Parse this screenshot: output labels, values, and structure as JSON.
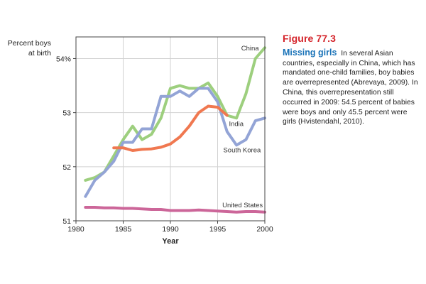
{
  "figure": {
    "number_label": "Figure 77.3",
    "title": "Missing girls",
    "text": "In several Asian countries, especially in China, which has mandated one-child families, boy babies are overrepresented (Abrevaya, 2009). In China, this overrepresentation still occurred in 2009: 54.5 percent of babies were boys and only 45.5 percent were girls (Hvistendahl, 2010)."
  },
  "chart_data": {
    "type": "line",
    "ylabel": "Percent boys at birth",
    "xlabel": "Year",
    "xlim": [
      1980,
      2000
    ],
    "ylim": [
      51,
      54.4
    ],
    "xticks": [
      {
        "value": 1980,
        "label": "1980"
      },
      {
        "value": 1985,
        "label": "1985"
      },
      {
        "value": 1990,
        "label": "1990"
      },
      {
        "value": 1995,
        "label": "1995"
      },
      {
        "value": 2000,
        "label": "2000"
      }
    ],
    "yticks": [
      {
        "value": 51,
        "label": "51"
      },
      {
        "value": 52,
        "label": "52"
      },
      {
        "value": 53,
        "label": "53"
      },
      {
        "value": 54,
        "label": "54%"
      }
    ],
    "grid": true,
    "series": [
      {
        "name": "China",
        "color": "#9dcf7e",
        "label_at": [
          1997.5,
          54.15
        ],
        "x": [
          1981,
          1982,
          1983,
          1984,
          1985,
          1986,
          1987,
          1988,
          1989,
          1990,
          1991,
          1992,
          1993,
          1994,
          1995,
          1996,
          1997,
          1998,
          1999,
          2000
        ],
        "y": [
          51.75,
          51.8,
          51.9,
          52.2,
          52.5,
          52.75,
          52.5,
          52.6,
          52.9,
          53.45,
          53.5,
          53.45,
          53.45,
          53.55,
          53.3,
          52.95,
          52.9,
          53.35,
          54.0,
          54.2
        ]
      },
      {
        "name": "South Korea",
        "color": "#93a4d6",
        "label_at": [
          1995.6,
          52.27
        ],
        "x": [
          1981,
          1982,
          1983,
          1984,
          1985,
          1986,
          1987,
          1988,
          1989,
          1990,
          1991,
          1992,
          1993,
          1994,
          1995,
          1996,
          1997,
          1998,
          1999,
          2000
        ],
        "y": [
          51.45,
          51.75,
          51.9,
          52.1,
          52.45,
          52.45,
          52.7,
          52.7,
          53.3,
          53.3,
          53.4,
          53.3,
          53.45,
          53.45,
          53.2,
          52.65,
          52.4,
          52.5,
          52.85,
          52.9
        ]
      },
      {
        "name": "India",
        "color": "#f07850",
        "label_at": [
          1996.2,
          52.75
        ],
        "x": [
          1984,
          1985,
          1986,
          1987,
          1988,
          1989,
          1990,
          1991,
          1992,
          1993,
          1994,
          1995,
          1996
        ],
        "y": [
          52.35,
          52.35,
          52.3,
          52.32,
          52.33,
          52.36,
          52.42,
          52.55,
          52.75,
          53.0,
          53.12,
          53.1,
          52.95
        ]
      },
      {
        "name": "United States",
        "color": "#cc6699",
        "label_at": [
          1995.5,
          51.25
        ],
        "x": [
          1981,
          1982,
          1983,
          1984,
          1985,
          1986,
          1987,
          1988,
          1989,
          1990,
          1991,
          1992,
          1993,
          1994,
          1995,
          1996,
          1997,
          1998,
          1999,
          2000
        ],
        "y": [
          51.25,
          51.25,
          51.24,
          51.24,
          51.23,
          51.23,
          51.22,
          51.21,
          51.21,
          51.19,
          51.19,
          51.19,
          51.2,
          51.19,
          51.18,
          51.17,
          51.16,
          51.17,
          51.17,
          51.16
        ]
      }
    ]
  }
}
